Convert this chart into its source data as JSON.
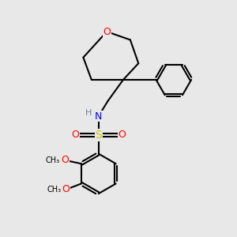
{
  "background_color": "#e8e8e8",
  "bond_color": "#000000",
  "bond_width": 1.5,
  "atom_colors": {
    "O": "#ff0000",
    "N": "#0000ff",
    "S": "#cccc00",
    "H": "#708090",
    "C": "#000000"
  },
  "font_size": 8,
  "figsize": [
    3.0,
    3.0
  ],
  "dpi": 100
}
